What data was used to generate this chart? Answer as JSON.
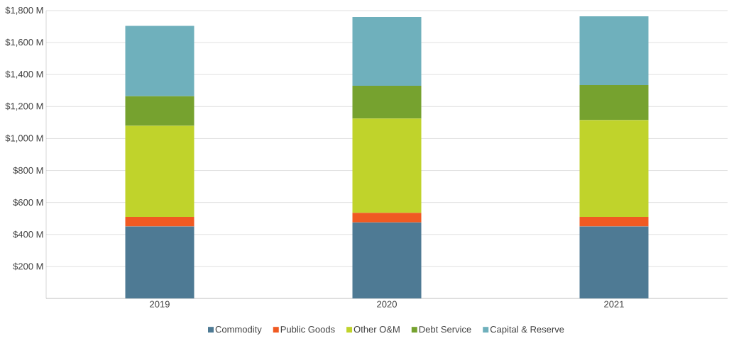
{
  "chart_data": {
    "type": "bar",
    "stacked": true,
    "categories": [
      "2019",
      "2020",
      "2021"
    ],
    "series": [
      {
        "name": "Commodity",
        "color": "#4e7a94",
        "values": [
          450,
          475,
          450
        ]
      },
      {
        "name": "Public Goods",
        "color": "#f05a22",
        "values": [
          60,
          60,
          60
        ]
      },
      {
        "name": "Other O&M",
        "color": "#c0d32b",
        "values": [
          570,
          590,
          605
        ]
      },
      {
        "name": "Debt Service",
        "color": "#76a22f",
        "values": [
          185,
          205,
          220
        ]
      },
      {
        "name": "Capital & Reserve",
        "color": "#6fb0bc",
        "values": [
          440,
          430,
          430
        ]
      }
    ],
    "ylim": [
      0,
      1800
    ],
    "yticks": [
      {
        "value": 0,
        "label": null
      },
      {
        "value": 200,
        "label": "$200 M"
      },
      {
        "value": 400,
        "label": "$400 M"
      },
      {
        "value": 600,
        "label": "$600 M"
      },
      {
        "value": 800,
        "label": "$800 M"
      },
      {
        "value": 1000,
        "label": "$1,000 M"
      },
      {
        "value": 1200,
        "label": "$1,200 M"
      },
      {
        "value": 1400,
        "label": "$1,400 M"
      },
      {
        "value": 1600,
        "label": "$1,600 M"
      },
      {
        "value": 1800,
        "label": "$1,800 M"
      }
    ],
    "grid": "y",
    "legend": "bottom"
  }
}
